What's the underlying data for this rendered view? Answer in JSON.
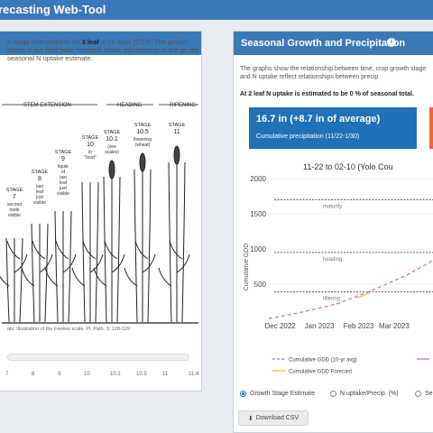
{
  "app": {
    "title": "recasting Web-Tool"
  },
  "left_panel": {
    "description_pre": "h stage forecasted to be ",
    "description_bold": "3 leaf",
    "description_post": " in 11 days (2/10). The growth plants in the field have reached. Make adjustments to the ge the seasonal N uptake estimate.",
    "figure_caption": "als: Illustration of the Feekes scale. Pl. Path. 3: 128-129",
    "figure_labels": {
      "stem_extension": "STEM EXTENSION",
      "heading": "HEADING",
      "ripening": "RIPENING",
      "stages": [
        {
          "stage": "STAGE 7",
          "note": "second node visible"
        },
        {
          "stage": "STAGE 8",
          "note": "last leaf just visible"
        },
        {
          "stage": "STAGE 9",
          "note": "ligule of last leaf just visible"
        },
        {
          "stage": "STAGE 10",
          "note": "in \"boot\""
        },
        {
          "stage": "STAGE 10.1",
          "note": "(see scales)"
        },
        {
          "stage": "STAGE 10.5",
          "note": "flowering (wheat)"
        },
        {
          "stage": "STAGE 11",
          "note": ""
        }
      ]
    },
    "slider_ticks": [
      "7",
      "8",
      "9",
      "10",
      "10.1",
      "10.5",
      "11",
      "11.4"
    ]
  },
  "right_panel": {
    "header": "Seasonal Growth and Precipitation",
    "info_icon": "info-icon",
    "description": "The graphs show the relationship between time, crop growth stage and N uptake reflect relationships between precip",
    "nuptake_line": "At 2 leaf N uptake is estimated to be 0 % of seasonal total.",
    "precip_value": "16.7 in (+8.7 in of average)",
    "precip_label": "Cumulative precipitation (11/22-1/30)",
    "chart_title": "11-22 to 02-10 (Yolo Cou",
    "ylabel": "Cumulative GDD",
    "radio_options": [
      {
        "label": "Growth Stage Estimate",
        "selected": true
      },
      {
        "label": "N uptake/Precip. (%)",
        "selected": false
      },
      {
        "label": "Se",
        "selected": false
      }
    ],
    "download_label": "Download CSV",
    "download_icon": "download-icon"
  },
  "colors": {
    "header_blue": "#3a79b8",
    "stat_blue": "#1f72b8",
    "gdd_avg": "#c77fd6",
    "gdd_forecast": "#e8cf3a"
  },
  "chart_data": {
    "type": "line",
    "title": "11-22 to 02-10 (Yolo Cou",
    "ylabel": "Cumulative GDD",
    "ylim": [
      0,
      2000
    ],
    "y_ticks": [
      500,
      1000,
      1500,
      2000
    ],
    "x_ticks": [
      "Dec 2022",
      "Jan 2023",
      "Feb 2023",
      "Mar 2023"
    ],
    "reference_lines": [
      {
        "label": "maturity",
        "y": 1700
      },
      {
        "label": "heading",
        "y": 950
      },
      {
        "label": "tillering",
        "y": 390
      }
    ],
    "series": [
      {
        "name": "Cumulative GDD (10-yr avg)",
        "style": "dashed",
        "color": "#c77fd6",
        "x": [
          "2022-11-22",
          "2022-12-15",
          "2023-01-15",
          "2023-02-10",
          "2023-03-10",
          "2023-04-05"
        ],
        "y": [
          10,
          90,
          220,
          400,
          620,
          880
        ]
      },
      {
        "name": "Cumulative GDD Forecast",
        "style": "solid",
        "color": "#e8cf3a",
        "x": [
          "2023-01-30",
          "2023-02-10"
        ],
        "y": [
          300,
          380
        ]
      }
    ],
    "legend": [
      {
        "name": "Cumulative GDD (10-yr avg)"
      },
      {
        "name": "Cumulative GDD Forecast"
      }
    ]
  }
}
